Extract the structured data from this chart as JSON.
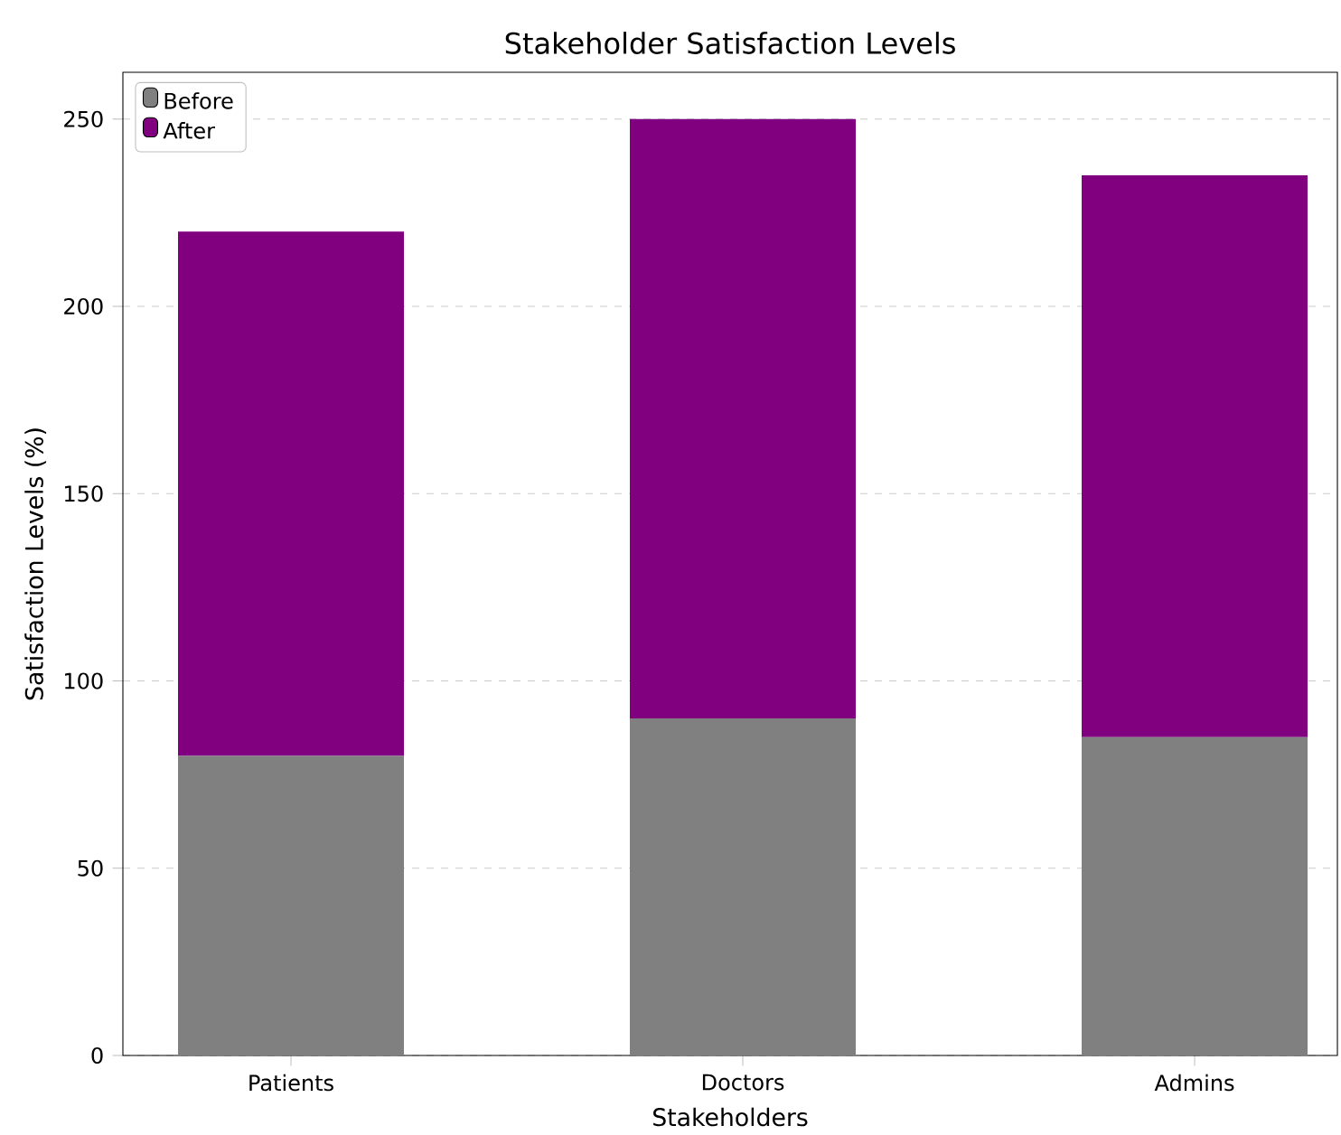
{
  "chart_data": {
    "type": "bar",
    "title": "Stakeholder Satisfaction Levels",
    "xlabel": "Stakeholders",
    "ylabel": "Satisfaction Levels (%)",
    "categories": [
      "Patients",
      "Doctors",
      "Admins"
    ],
    "series": [
      {
        "name": "Before",
        "color": "#808080",
        "values": [
          80,
          90,
          85
        ]
      },
      {
        "name": "After",
        "color": "#800080",
        "values": [
          140,
          160,
          150
        ]
      }
    ],
    "stacked": true,
    "ylim": [
      0,
      262.5
    ],
    "yticks": [
      0,
      50,
      100,
      150,
      200,
      250
    ],
    "grid": "y",
    "legend": "top left"
  }
}
